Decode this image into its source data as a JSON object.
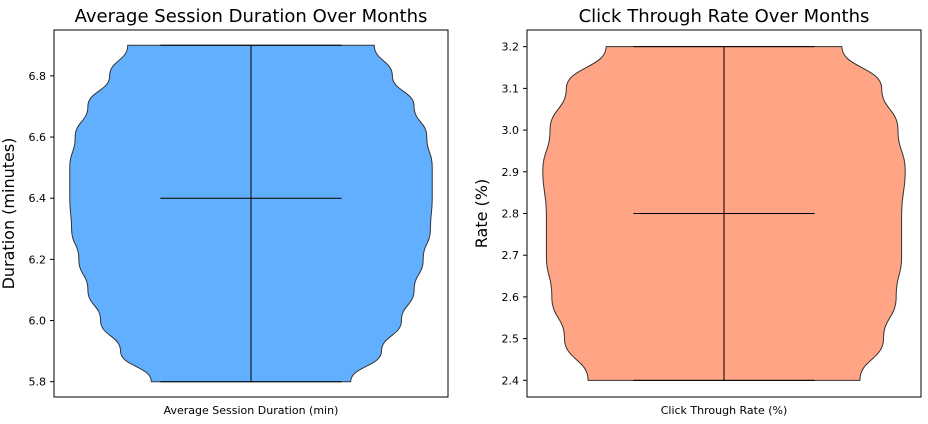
{
  "chart_data": [
    {
      "type": "violin",
      "title": "Average Session Duration Over Months",
      "ylabel": "Duration (minutes)",
      "categories": [
        "Average Session Duration (min)"
      ],
      "ylim": [
        5.75,
        6.95
      ],
      "yticks": [
        5.8,
        6.0,
        6.2,
        6.4,
        6.6,
        6.8
      ],
      "ytick_labels": [
        "5.8",
        "6.0",
        "6.2",
        "6.4",
        "6.6",
        "6.8"
      ],
      "min": 5.8,
      "max": 6.9,
      "median": 6.4,
      "fill_color": "#62afff",
      "density_profile": [
        {
          "y": 5.8,
          "w": 0.55
        },
        {
          "y": 5.9,
          "w": 0.72
        },
        {
          "y": 6.0,
          "w": 0.83
        },
        {
          "y": 6.1,
          "w": 0.9
        },
        {
          "y": 6.2,
          "w": 0.95
        },
        {
          "y": 6.3,
          "w": 0.99
        },
        {
          "y": 6.4,
          "w": 1.0
        },
        {
          "y": 6.5,
          "w": 1.0
        },
        {
          "y": 6.6,
          "w": 0.97
        },
        {
          "y": 6.7,
          "w": 0.9
        },
        {
          "y": 6.8,
          "w": 0.78
        },
        {
          "y": 6.9,
          "w": 0.68
        }
      ]
    },
    {
      "type": "violin",
      "title": "Click Through Rate Over Months",
      "ylabel": "Rate (%)",
      "categories": [
        "Click Through Rate (%)"
      ],
      "ylim": [
        2.36,
        3.24
      ],
      "yticks": [
        2.4,
        2.5,
        2.6,
        2.7,
        2.8,
        2.9,
        3.0,
        3.1,
        3.2
      ],
      "ytick_labels": [
        "2.4",
        "2.5",
        "2.6",
        "2.7",
        "2.8",
        "2.9",
        "3.0",
        "3.1",
        "3.2"
      ],
      "min": 2.4,
      "max": 3.2,
      "median": 2.8,
      "fill_color": "#ffa585",
      "density_profile": [
        {
          "y": 2.4,
          "w": 0.75
        },
        {
          "y": 2.5,
          "w": 0.88
        },
        {
          "y": 2.6,
          "w": 0.95
        },
        {
          "y": 2.7,
          "w": 0.98
        },
        {
          "y": 2.8,
          "w": 0.98
        },
        {
          "y": 2.9,
          "w": 1.0
        },
        {
          "y": 3.0,
          "w": 0.96
        },
        {
          "y": 3.1,
          "w": 0.87
        },
        {
          "y": 3.2,
          "w": 0.65
        }
      ]
    }
  ]
}
